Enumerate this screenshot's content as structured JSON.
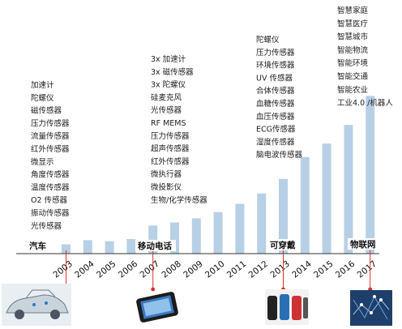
{
  "chart_data": {
    "type": "bar",
    "categories": [
      "2003",
      "2004",
      "2005",
      "2006",
      "2007",
      "2008",
      "2009",
      "2010",
      "2011",
      "2012",
      "2013",
      "2014",
      "2015",
      "2016",
      "2017"
    ],
    "values": [
      9,
      13,
      12,
      14,
      27,
      30,
      34,
      40,
      48,
      58,
      72,
      93,
      106,
      124,
      152
    ],
    "bar_color": "#b8d0e6",
    "axis_color": "#333333",
    "marker_color": "#d9312b",
    "eras": [
      {
        "label": "汽车",
        "year": "2003",
        "sensors": [
          "加速计",
          "陀螺仪",
          "磁传感器",
          "压力传感器",
          "流量传感器",
          "红外传感器",
          "微显示",
          "角度传感器",
          "温度传感器",
          "O2 传感器",
          "振动传感器",
          "光传感器"
        ]
      },
      {
        "label": "移动电话",
        "year": "2007",
        "sensors": [
          "3x 加速计",
          "3x 磁传感器",
          "3x 陀螺仪",
          "硅麦克风",
          "光传感器",
          "RF MEMS",
          "压力传感器",
          "超声传感器",
          "红外传感器",
          "微执行器",
          "微投影仪",
          "生物/化学传感器"
        ]
      },
      {
        "label": "可穿戴",
        "year": "2013",
        "sensors": [
          "陀螺仪",
          "压力传感器",
          "环境传感器",
          "UV 传感器",
          "合体传感器",
          "血糖传感器",
          "血压传感器",
          "ECG传感器",
          "湿度传感器",
          "脑电波传感器"
        ]
      },
      {
        "label": "物联网",
        "year": "2017",
        "sensors": [
          "智慧家庭",
          "智慧医疗",
          "智慧城市",
          "智能物流",
          "智能环境",
          "智能交通",
          "智能农业",
          "工业4.0 /机器人"
        ]
      }
    ],
    "pictures": [
      "car-image",
      "smartphone-image",
      "wearables-image",
      "iot-network-image"
    ]
  }
}
